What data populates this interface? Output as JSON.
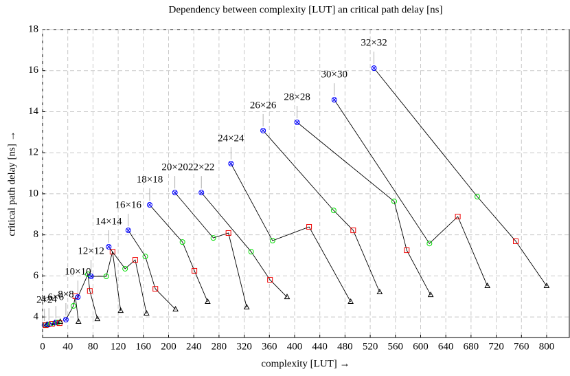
{
  "chart_data": {
    "type": "line",
    "title": "Dependency between complexity [LUT] an critical path delay [ns]",
    "x_label": "complexity [LUT] →",
    "y_label": "critical path delay [ns] →",
    "xlim": [
      0,
      836
    ],
    "ylim": [
      3,
      18
    ],
    "xticks": [
      0,
      40,
      80,
      120,
      160,
      200,
      240,
      280,
      320,
      360,
      400,
      440,
      480,
      520,
      560,
      600,
      640,
      680,
      720,
      760,
      800
    ],
    "yticks": [
      4,
      6,
      8,
      10,
      12,
      14,
      16,
      18
    ],
    "grid": true,
    "line_color": "#000000",
    "point_styles": [
      {
        "marker": "circle-cross",
        "color": "#0000ff"
      },
      {
        "marker": "circle",
        "color": "#00dd00"
      },
      {
        "marker": "square",
        "color": "#ee0000"
      },
      {
        "marker": "triangle",
        "color": "#000000"
      }
    ],
    "series": [
      {
        "name": "2×2",
        "x": [
          3,
          4,
          5,
          7
        ],
        "values": [
          3.6,
          3.6,
          3.6,
          3.63
        ]
      },
      {
        "name": "4×4",
        "x": [
          10,
          13,
          15,
          19
        ],
        "values": [
          3.63,
          3.67,
          3.67,
          3.7
        ]
      },
      {
        "name": "6×6",
        "x": [
          21,
          24,
          27,
          28
        ],
        "values": [
          3.73,
          3.73,
          3.7,
          3.77
        ]
      },
      {
        "name": "8×8",
        "x": [
          37,
          49,
          52,
          57
        ],
        "values": [
          3.87,
          4.54,
          5.01,
          3.77
        ]
      },
      {
        "name": "10×10",
        "x": [
          56,
          72,
          75,
          87
        ],
        "values": [
          4.97,
          6.08,
          5.27,
          3.9
        ]
      },
      {
        "name": "12×12",
        "x": [
          77,
          101,
          111,
          124
        ],
        "values": [
          5.98,
          5.98,
          7.18,
          4.3
        ]
      },
      {
        "name": "14×14",
        "x": [
          105,
          131,
          147,
          165
        ],
        "values": [
          7.42,
          6.35,
          6.78,
          4.17
        ]
      },
      {
        "name": "16×16",
        "x": [
          136,
          163,
          179,
          211
        ],
        "values": [
          8.22,
          6.95,
          5.37,
          4.37
        ]
      },
      {
        "name": "18×18",
        "x": [
          170,
          222,
          241,
          262
        ],
        "values": [
          9.46,
          7.65,
          6.25,
          4.74
        ]
      },
      {
        "name": "20×20",
        "x": [
          210,
          271,
          295,
          324
        ],
        "values": [
          10.06,
          7.85,
          8.09,
          4.47
        ]
      },
      {
        "name": "22×22",
        "x": [
          252,
          331,
          361,
          388
        ],
        "values": [
          10.06,
          7.18,
          5.81,
          4.97
        ]
      },
      {
        "name": "24×24",
        "x": [
          299,
          365,
          423,
          489
        ],
        "values": [
          11.47,
          7.72,
          8.39,
          4.74
        ]
      },
      {
        "name": "26×26",
        "x": [
          350,
          462,
          493,
          535
        ],
        "values": [
          13.08,
          9.19,
          8.22,
          5.21
        ]
      },
      {
        "name": "28×28",
        "x": [
          404,
          558,
          578,
          616
        ],
        "values": [
          13.48,
          9.63,
          7.25,
          5.07
        ]
      },
      {
        "name": "30×30",
        "x": [
          463,
          614,
          659,
          706
        ],
        "values": [
          14.58,
          7.58,
          8.89,
          5.51
        ]
      },
      {
        "name": "32×32",
        "x": [
          526,
          690,
          751,
          800
        ],
        "values": [
          16.12,
          9.86,
          7.69,
          5.51
        ]
      }
    ]
  }
}
